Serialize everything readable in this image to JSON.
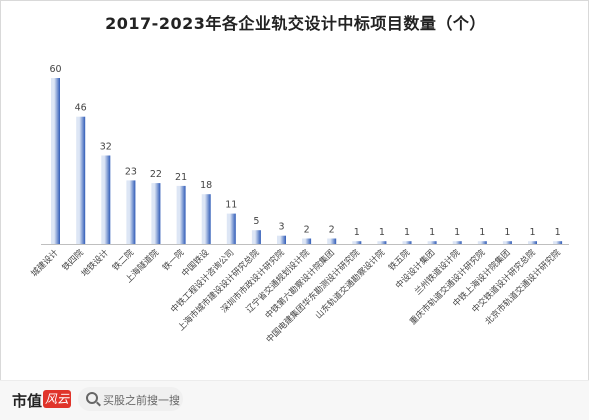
{
  "chart_data": {
    "type": "bar",
    "title": "2017-2023年各企业轨交设计中标项目数量（个）",
    "categories": [
      "城建设计",
      "铁四院",
      "地铁设计",
      "铁二院",
      "上海隧道院",
      "铁一院",
      "中国铁设",
      "中铁工程设计咨询公司",
      "上海市城市建设设计研究总院",
      "深圳市市政设计研究院",
      "辽宁省交通规划设计院",
      "中铁第六勘察设计院集团",
      "中国电建集团华东勘测设计研究院",
      "山东轨道交通勘察设计院",
      "铁五院",
      "中设设计集团",
      "兰州铁道设计院",
      "重庆市轨道交通设计研究院",
      "中铁上海设计院集团",
      "中交铁道设计研究总院",
      "北京市轨道交通设计研究院"
    ],
    "values": [
      60,
      46,
      32,
      23,
      22,
      21,
      18,
      11,
      5,
      3,
      2,
      2,
      1,
      1,
      1,
      1,
      1,
      1,
      1,
      1,
      1
    ],
    "ylim": [
      0,
      66
    ],
    "colors": {
      "bar_light": "#dde6f5",
      "bar_dark": "#2f5bb7",
      "axis": "#bfbfbf",
      "text": "#444444"
    }
  },
  "footer": {
    "brand": "市值",
    "logo_text": "风云",
    "search_placeholder": "买股之前搜一搜"
  }
}
